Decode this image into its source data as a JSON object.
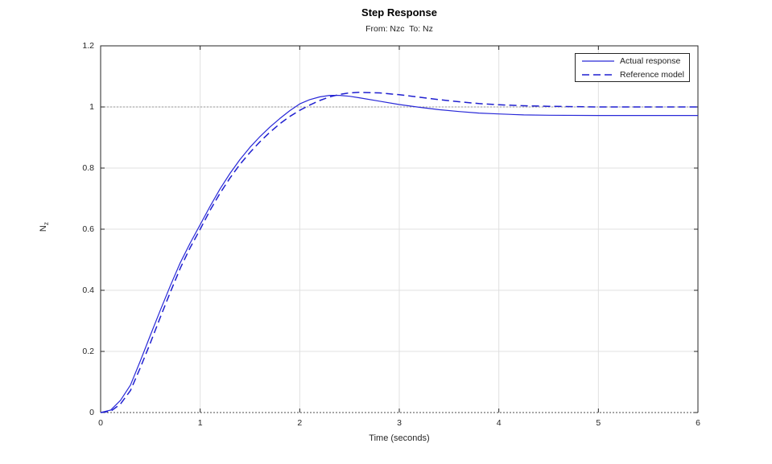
{
  "chart_data": {
    "type": "line",
    "title": "Step Response",
    "subtitle": "From: Nzc  To: Nz",
    "xlabel": "Time (seconds)",
    "ylabel_main": "N",
    "ylabel_sub": "z",
    "xlim": [
      0,
      6
    ],
    "ylim": [
      0,
      1.2
    ],
    "xticks": [
      0,
      1,
      2,
      3,
      4,
      5,
      6
    ],
    "yticks": [
      0,
      0.2,
      0.4,
      0.6,
      0.8,
      1,
      1.2
    ],
    "grid": true,
    "grid_color": "#e0e0e0",
    "axis_color": "#262626",
    "legend_position": "top-right",
    "baselines": [
      {
        "y": 0,
        "color": "#4d4d4d"
      },
      {
        "y": 1,
        "color": "#979797"
      }
    ],
    "series": [
      {
        "name": "Actual response",
        "style": "solid",
        "color": "#2828d8",
        "x": [
          0,
          0.1,
          0.2,
          0.3,
          0.4,
          0.5,
          0.6,
          0.7,
          0.8,
          0.9,
          1.0,
          1.1,
          1.2,
          1.3,
          1.4,
          1.5,
          1.6,
          1.7,
          1.8,
          1.9,
          2.0,
          2.1,
          2.2,
          2.3,
          2.4,
          2.5,
          2.6,
          2.8,
          3.0,
          3.2,
          3.4,
          3.6,
          3.8,
          4.0,
          4.25,
          4.5,
          5.0,
          5.5,
          6.0
        ],
        "y": [
          0,
          0.008,
          0.04,
          0.09,
          0.17,
          0.253,
          0.335,
          0.415,
          0.49,
          0.555,
          0.615,
          0.675,
          0.732,
          0.783,
          0.828,
          0.868,
          0.903,
          0.934,
          0.962,
          0.988,
          1.01,
          1.024,
          1.033,
          1.038,
          1.038,
          1.035,
          1.03,
          1.019,
          1.008,
          0.999,
          0.991,
          0.985,
          0.98,
          0.977,
          0.974,
          0.973,
          0.972,
          0.972,
          0.972
        ]
      },
      {
        "name": "Reference model",
        "style": "dashed",
        "color": "#1f1fd0",
        "x": [
          0,
          0.1,
          0.2,
          0.3,
          0.4,
          0.5,
          0.6,
          0.7,
          0.8,
          0.9,
          1.0,
          1.1,
          1.2,
          1.3,
          1.4,
          1.5,
          1.6,
          1.7,
          1.8,
          1.9,
          2.0,
          2.1,
          2.2,
          2.3,
          2.4,
          2.5,
          2.6,
          2.8,
          3.0,
          3.2,
          3.4,
          3.6,
          3.8,
          4.0,
          4.25,
          4.5,
          5.0,
          5.5,
          6.0
        ],
        "y": [
          0,
          0.004,
          0.028,
          0.072,
          0.148,
          0.228,
          0.312,
          0.394,
          0.472,
          0.54,
          0.6,
          0.662,
          0.718,
          0.768,
          0.812,
          0.851,
          0.886,
          0.917,
          0.945,
          0.969,
          0.989,
          1.006,
          1.021,
          1.033,
          1.041,
          1.046,
          1.048,
          1.046,
          1.04,
          1.032,
          1.024,
          1.017,
          1.011,
          1.007,
          1.004,
          1.002,
          1.0,
          1.0,
          1.0
        ]
      }
    ]
  }
}
